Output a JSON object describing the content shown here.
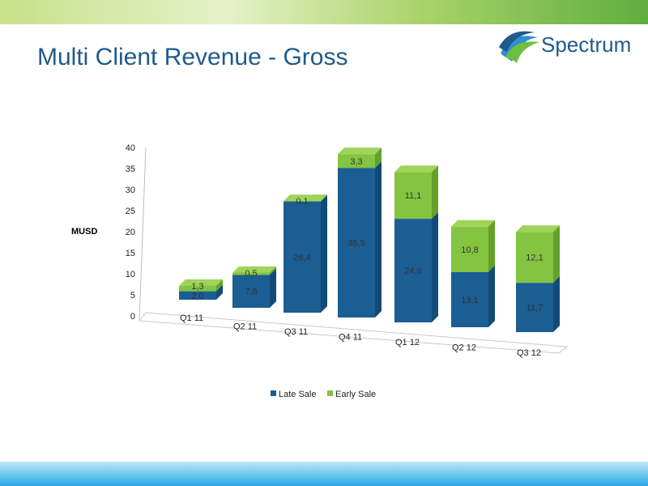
{
  "slide": {
    "title": "Multi Client Revenue - Gross",
    "logo_text": "Spectrum"
  },
  "colors": {
    "late_front": "#1b5e93",
    "late_side": "#134a76",
    "late_top": "#2c77ad",
    "early_front": "#84c440",
    "early_side": "#63a02c",
    "early_top": "#9fd35a"
  },
  "chart_data": {
    "type": "bar",
    "stacked": true,
    "three_d": true,
    "categories": [
      "Q1 11",
      "Q2 11",
      "Q3 11",
      "Q4 11",
      "Q1 12",
      "Q2 12",
      "Q3 12"
    ],
    "series": [
      {
        "name": "Late Sale",
        "values": [
          2.0,
          7.8,
          26.4,
          35.5,
          24.6,
          13.1,
          11.7
        ],
        "labels": [
          "2,0",
          "7,8",
          "26,4",
          "35,5",
          "24,6",
          "13,1",
          "11,7"
        ]
      },
      {
        "name": "Early Sale",
        "values": [
          1.3,
          0.5,
          0.1,
          3.3,
          11.1,
          10.8,
          12.1
        ],
        "labels": [
          "1,3",
          "0,5",
          "0,1",
          "3,3",
          "11,1",
          "10,8",
          "12,1"
        ]
      }
    ],
    "ylabel": "MUSD",
    "ylim": [
      0,
      40
    ],
    "yticks": [
      "0",
      "5",
      "10",
      "15",
      "20",
      "25",
      "30",
      "35",
      "40"
    ],
    "legend_position": "bottom",
    "grid": false
  }
}
